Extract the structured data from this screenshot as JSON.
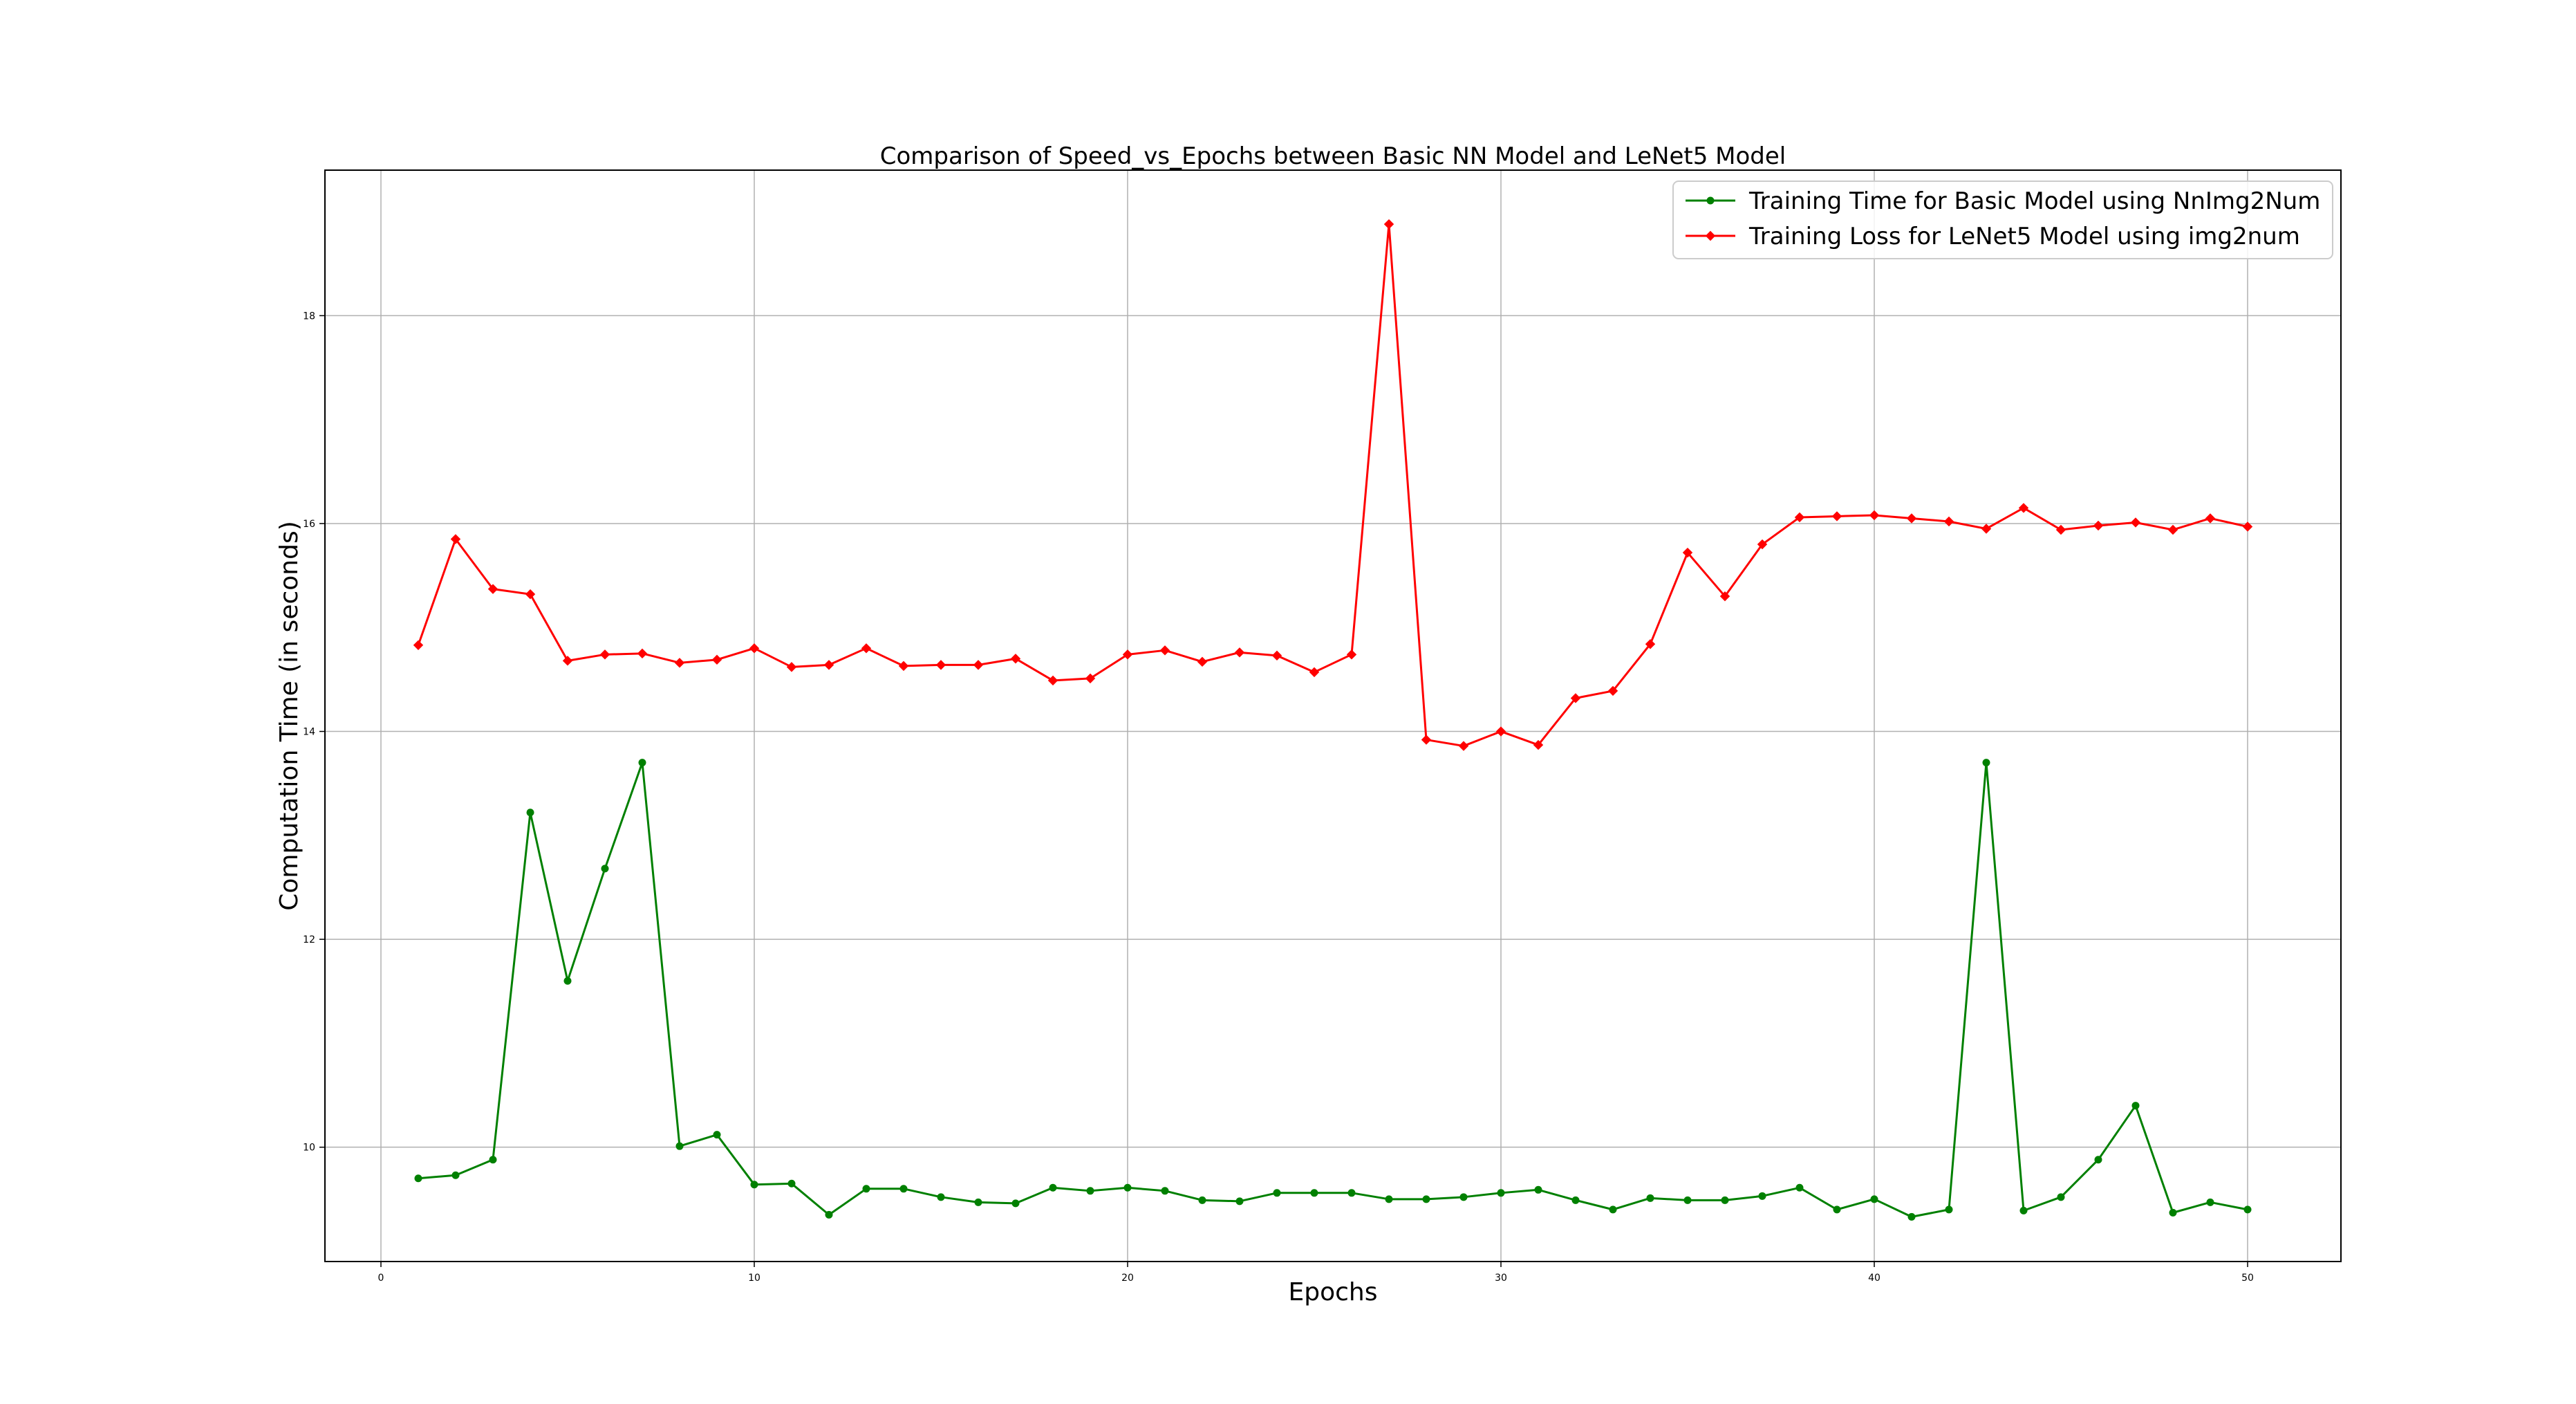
{
  "chart_data": {
    "type": "line",
    "title": "Comparison of Speed_vs_Epochs between Basic NN Model and LeNet5 Model",
    "xlabel": "Epochs",
    "ylabel": "Computation Time (in seconds)",
    "xlim": [
      -1.5,
      52.5
    ],
    "ylim": [
      8.9,
      19.4
    ],
    "xticks": [
      0,
      10,
      20,
      30,
      40,
      50
    ],
    "yticks": [
      10,
      12,
      14,
      16,
      18
    ],
    "grid": true,
    "legend_position": "top-right",
    "x": [
      1,
      2,
      3,
      4,
      5,
      6,
      7,
      8,
      9,
      10,
      11,
      12,
      13,
      14,
      15,
      16,
      17,
      18,
      19,
      20,
      21,
      22,
      23,
      24,
      25,
      26,
      27,
      28,
      29,
      30,
      31,
      32,
      33,
      34,
      35,
      36,
      37,
      38,
      39,
      40,
      41,
      42,
      43,
      44,
      45,
      46,
      47,
      48,
      49,
      50
    ],
    "series": [
      {
        "name": "Training Time for Basic Model using NnImg2Num",
        "color": "#008000",
        "marker": "circle",
        "values": [
          9.7,
          9.73,
          9.88,
          13.22,
          11.6,
          12.68,
          13.7,
          10.01,
          10.12,
          9.64,
          9.65,
          9.35,
          9.6,
          9.6,
          9.52,
          9.47,
          9.46,
          9.61,
          9.58,
          9.61,
          9.58,
          9.49,
          9.48,
          9.56,
          9.56,
          9.56,
          9.5,
          9.5,
          9.52,
          9.56,
          9.59,
          9.49,
          9.4,
          9.51,
          9.49,
          9.49,
          9.53,
          9.61,
          9.4,
          9.5,
          9.33,
          9.4,
          13.7,
          9.39,
          9.52,
          9.88,
          10.4,
          9.37,
          9.47,
          9.4
        ]
      },
      {
        "name": "Training Loss for LeNet5 Model using img2num",
        "color": "#ff0000",
        "marker": "diamond",
        "values": [
          14.83,
          15.85,
          15.37,
          15.32,
          14.68,
          14.74,
          14.75,
          14.66,
          14.69,
          14.8,
          14.62,
          14.64,
          14.8,
          14.63,
          14.64,
          14.64,
          14.7,
          14.49,
          14.51,
          14.74,
          14.78,
          14.67,
          14.76,
          14.73,
          14.57,
          14.74,
          18.88,
          13.92,
          13.86,
          14.0,
          13.87,
          14.32,
          14.39,
          14.84,
          15.72,
          15.3,
          15.8,
          16.06,
          16.07,
          16.08,
          16.05,
          16.02,
          15.95,
          16.15,
          15.94,
          15.98,
          16.01,
          15.94,
          16.05,
          15.97
        ]
      }
    ]
  }
}
